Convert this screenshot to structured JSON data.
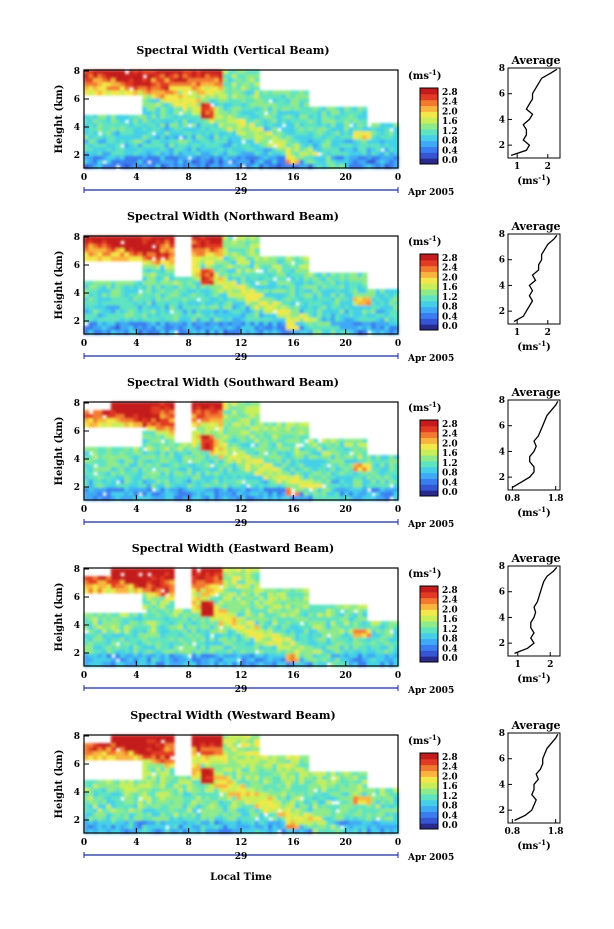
{
  "figure": {
    "xlabel": "Local Time",
    "colormap": [
      "#2a2a8c",
      "#3555d4",
      "#3b7df0",
      "#3fa9f5",
      "#45d0e8",
      "#5fe3c0",
      "#8eea8a",
      "#c8ef5a",
      "#f2e84a",
      "#f8b43c",
      "#f27a30",
      "#e23a24",
      "#c41c1c"
    ]
  },
  "chart_data": [
    {
      "type": "heatmap",
      "title": "Spectral Width (Vertical Beam)",
      "ylabel": "Height (km)",
      "xticks": [
        "0",
        "4",
        "8",
        "12",
        "16",
        "20",
        "0"
      ],
      "date_day": "29",
      "date_label": "Apr 2005",
      "yticks": [
        "2",
        "4",
        "6",
        "8"
      ],
      "colorbar": {
        "unit": "(ms",
        "unit_sup": "-1",
        "unit_close": ")",
        "ticks": [
          "0.0",
          "0.4",
          "0.8",
          "1.2",
          "1.6",
          "2.0",
          "2.4",
          "2.8"
        ]
      },
      "profile": {
        "type": "line",
        "title": "Average",
        "xlabel": "(ms",
        "xlabel_sup": "-1",
        "xlabel_close": ")",
        "xticks": [
          "1",
          "2"
        ],
        "xlim": [
          0.7,
          2.4
        ],
        "ylim": [
          1,
          8
        ],
        "heights": [
          1.2,
          1.6,
          2.0,
          2.4,
          2.8,
          3.2,
          3.6,
          4.0,
          4.4,
          4.8,
          5.2,
          5.6,
          6.0,
          6.4,
          6.8,
          7.2,
          7.6,
          7.9
        ],
        "values": [
          0.8,
          1.3,
          1.4,
          1.2,
          1.3,
          1.3,
          1.2,
          1.4,
          1.5,
          1.3,
          1.4,
          1.5,
          1.5,
          1.6,
          1.7,
          1.8,
          2.1,
          2.3
        ]
      }
    },
    {
      "type": "heatmap",
      "title": "Spectral Width (Northward Beam)",
      "ylabel": "Height (km)",
      "xticks": [
        "0",
        "4",
        "8",
        "12",
        "16",
        "20",
        "0"
      ],
      "date_day": "29",
      "date_label": "Apr 2005",
      "yticks": [
        "2",
        "4",
        "6",
        "8"
      ],
      "colorbar": {
        "unit": "(ms",
        "unit_sup": "-1",
        "unit_close": ")",
        "ticks": [
          "0.0",
          "0.4",
          "0.8",
          "1.2",
          "1.6",
          "2.0",
          "2.4",
          "2.8"
        ]
      },
      "profile": {
        "type": "line",
        "title": "Average",
        "xlabel": "(ms",
        "xlabel_sup": "-1",
        "xlabel_close": ")",
        "xticks": [
          "1",
          "2"
        ],
        "xlim": [
          0.7,
          2.4
        ],
        "ylim": [
          1,
          8
        ],
        "heights": [
          1.2,
          1.6,
          2.0,
          2.4,
          2.8,
          3.2,
          3.6,
          4.0,
          4.4,
          4.8,
          5.2,
          5.6,
          6.0,
          6.4,
          6.8,
          7.2,
          7.6,
          7.9
        ],
        "values": [
          0.9,
          1.2,
          1.3,
          1.4,
          1.5,
          1.4,
          1.5,
          1.4,
          1.6,
          1.5,
          1.7,
          1.7,
          1.8,
          1.8,
          1.9,
          2.0,
          2.2,
          2.3
        ]
      }
    },
    {
      "type": "heatmap",
      "title": "Spectral Width (Southward Beam)",
      "ylabel": "Height (km)",
      "xticks": [
        "0",
        "4",
        "8",
        "12",
        "16",
        "20",
        "0"
      ],
      "date_day": "29",
      "date_label": "Apr 2005",
      "yticks": [
        "2",
        "4",
        "6",
        "8"
      ],
      "colorbar": {
        "unit": "(ms",
        "unit_sup": "-1",
        "unit_close": ")",
        "ticks": [
          "0.0",
          "0.4",
          "0.8",
          "1.2",
          "1.6",
          "2.0",
          "2.4",
          "2.8"
        ]
      },
      "profile": {
        "type": "line",
        "title": "Average",
        "xlabel": "(ms",
        "xlabel_sup": "-1",
        "xlabel_close": ")",
        "xticks": [
          "0.8",
          "1.8"
        ],
        "xlim": [
          0.7,
          1.9
        ],
        "ylim": [
          1,
          8
        ],
        "heights": [
          1.2,
          1.6,
          2.0,
          2.4,
          2.8,
          3.2,
          3.6,
          4.0,
          4.4,
          4.8,
          5.2,
          5.6,
          6.0,
          6.4,
          6.8,
          7.2,
          7.6,
          7.9
        ],
        "values": [
          0.8,
          1.0,
          1.2,
          1.3,
          1.3,
          1.2,
          1.2,
          1.3,
          1.35,
          1.3,
          1.4,
          1.45,
          1.5,
          1.55,
          1.6,
          1.7,
          1.8,
          1.85
        ]
      }
    },
    {
      "type": "heatmap",
      "title": "Spectral Width (Eastward Beam)",
      "ylabel": "Height (km)",
      "xticks": [
        "0",
        "4",
        "8",
        "12",
        "16",
        "20",
        "0"
      ],
      "date_day": "29",
      "date_label": "Apr 2005",
      "yticks": [
        "2",
        "4",
        "6",
        "8"
      ],
      "colorbar": {
        "unit": "(ms",
        "unit_sup": "-1",
        "unit_close": ")",
        "ticks": [
          "0.0",
          "0.4",
          "0.8",
          "1.2",
          "1.6",
          "2.0",
          "2.4",
          "2.8"
        ]
      },
      "profile": {
        "type": "line",
        "title": "Average",
        "xlabel": "(ms",
        "xlabel_sup": "-1",
        "xlabel_close": ")",
        "xticks": [
          "1",
          "2"
        ],
        "xlim": [
          0.7,
          2.3
        ],
        "ylim": [
          1,
          8
        ],
        "heights": [
          1.2,
          1.6,
          2.0,
          2.4,
          2.8,
          3.2,
          3.6,
          4.0,
          4.4,
          4.8,
          5.2,
          5.6,
          6.0,
          6.4,
          6.8,
          7.2,
          7.6,
          7.9
        ],
        "values": [
          0.9,
          1.3,
          1.5,
          1.4,
          1.5,
          1.4,
          1.4,
          1.5,
          1.55,
          1.5,
          1.6,
          1.65,
          1.7,
          1.75,
          1.8,
          1.9,
          2.1,
          2.2
        ]
      }
    },
    {
      "type": "heatmap",
      "title": "Spectral Width (Westward Beam)",
      "ylabel": "Height (km)",
      "xticks": [
        "0",
        "4",
        "8",
        "12",
        "16",
        "20",
        "0"
      ],
      "date_day": "29",
      "date_label": "Apr 2005",
      "yticks": [
        "2",
        "4",
        "6",
        "8"
      ],
      "colorbar": {
        "unit": "(ms",
        "unit_sup": "-1",
        "unit_close": ")",
        "ticks": [
          "0.0",
          "0.4",
          "0.8",
          "1.2",
          "1.6",
          "2.0",
          "2.4",
          "2.8"
        ]
      },
      "profile": {
        "type": "line",
        "title": "Average",
        "xlabel": "(ms",
        "xlabel_sup": "-1",
        "xlabel_close": ")",
        "xticks": [
          "0.8",
          "1.8"
        ],
        "xlim": [
          0.7,
          1.9
        ],
        "ylim": [
          1,
          8
        ],
        "heights": [
          1.2,
          1.6,
          2.0,
          2.4,
          2.8,
          3.2,
          3.6,
          4.0,
          4.4,
          4.8,
          5.2,
          5.6,
          6.0,
          6.4,
          6.8,
          7.2,
          7.6,
          7.9
        ],
        "values": [
          0.85,
          1.1,
          1.25,
          1.3,
          1.35,
          1.25,
          1.3,
          1.3,
          1.4,
          1.35,
          1.45,
          1.5,
          1.5,
          1.55,
          1.6,
          1.7,
          1.8,
          1.85
        ]
      }
    }
  ]
}
